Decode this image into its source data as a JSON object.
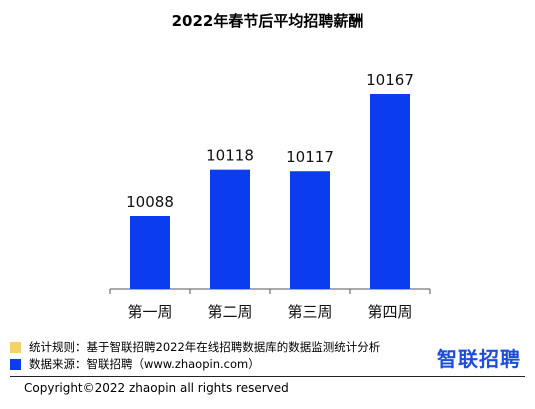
{
  "chart_data": {
    "type": "bar",
    "title": "2022年春节后平均招聘薪酬",
    "categories": [
      "第一周",
      "第二周",
      "第三周",
      "第四周"
    ],
    "values": [
      10088,
      10118,
      10117,
      10167
    ],
    "data_labels": [
      "10088",
      "10118",
      "10117",
      "10167"
    ],
    "color": "#0b3cf0",
    "grid": false,
    "legend": "none"
  },
  "notes": {
    "rule_text": "统计规则：基于智联招聘2022年在线招聘数据库的数据监测统计分析",
    "rule_color": "#f5d36b",
    "source_text": "数据来源：智联招聘（www.zhaopin.com）",
    "source_color": "#0b3cf0"
  },
  "logo": {
    "text": "智联招聘",
    "color": "#1d4ed8"
  },
  "footer": {
    "copyright": "Copyright©2022 zhaopin all rights reserved"
  }
}
